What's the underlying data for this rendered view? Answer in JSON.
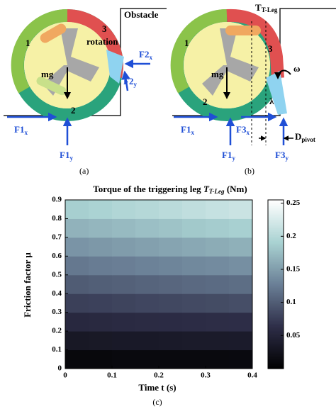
{
  "panel_a": {
    "obstacle": "Obstacle",
    "leg_1": "1",
    "leg_2": "2",
    "leg_3": "3",
    "rotation": "rotation",
    "weight": "mg",
    "f1x": {
      "main": "F1",
      "sub": "x"
    },
    "f1y": {
      "main": "F1",
      "sub": "y"
    },
    "f2x": {
      "main": "F2",
      "sub": "x"
    },
    "f2y": {
      "main": "F2",
      "sub": "y"
    },
    "caption": "(a)"
  },
  "panel_b": {
    "torque": {
      "main": "T",
      "sub": "T-Leg"
    },
    "leg_1": "1",
    "leg_2": "2",
    "leg_3": "3",
    "omega": "ω",
    "weight": "mg",
    "lambda": "λ",
    "f1x": {
      "main": "F1",
      "sub": "x"
    },
    "f1y": {
      "main": "F1",
      "sub": "y"
    },
    "f3x": {
      "main": "F3",
      "sub": "x"
    },
    "f3y": {
      "main": "F3",
      "sub": "y"
    },
    "d_pivot": {
      "main": "D",
      "sub": "pivot"
    },
    "caption": "(b)"
  },
  "chart_data": {
    "type": "heatmap",
    "title": "Torque of the triggering leg",
    "title_symbol": "T",
    "title_symbol_sub": "T-Leg",
    "title_unit": "(Nm)",
    "xlabel": "Time t (s)",
    "ylabel": "Friction factor μ",
    "caption": "(c)",
    "xlim": [
      0,
      0.4
    ],
    "ylim": [
      0,
      0.9
    ],
    "xticks": [
      0,
      0.1,
      0.2,
      0.3,
      0.4
    ],
    "yticks": [
      0,
      0.1,
      0.2,
      0.3,
      0.4,
      0.5,
      0.6,
      0.7,
      0.8,
      0.9
    ],
    "xbins": [
      0,
      0.05,
      0.1,
      0.15,
      0.2,
      0.25,
      0.3,
      0.35,
      0.4
    ],
    "ybins": [
      0,
      0.1,
      0.2,
      0.3,
      0.4,
      0.5,
      0.6,
      0.7,
      0.8,
      0.9
    ],
    "values": [
      [
        0.011,
        0.011,
        0.012,
        0.012,
        0.012,
        0.012,
        0.012,
        0.013
      ],
      [
        0.033,
        0.034,
        0.035,
        0.035,
        0.036,
        0.037,
        0.037,
        0.038
      ],
      [
        0.056,
        0.057,
        0.058,
        0.059,
        0.06,
        0.061,
        0.062,
        0.063
      ],
      [
        0.078,
        0.079,
        0.081,
        0.083,
        0.084,
        0.086,
        0.087,
        0.089
      ],
      [
        0.1,
        0.102,
        0.104,
        0.106,
        0.108,
        0.11,
        0.112,
        0.114
      ],
      [
        0.122,
        0.125,
        0.127,
        0.13,
        0.132,
        0.135,
        0.137,
        0.14
      ],
      [
        0.144,
        0.147,
        0.15,
        0.153,
        0.156,
        0.159,
        0.162,
        0.165
      ],
      [
        0.167,
        0.17,
        0.173,
        0.177,
        0.18,
        0.184,
        0.187,
        0.19
      ],
      [
        0.189,
        0.193,
        0.197,
        0.2,
        0.204,
        0.208,
        0.212,
        0.216
      ]
    ],
    "clim": [
      0,
      0.255
    ],
    "cticks": [
      0.05,
      0.1,
      0.15,
      0.2,
      0.25
    ],
    "colormap": [
      "#000000",
      "#2e2e48",
      "#6a7f96",
      "#a9d2d2",
      "#ffffff"
    ]
  }
}
